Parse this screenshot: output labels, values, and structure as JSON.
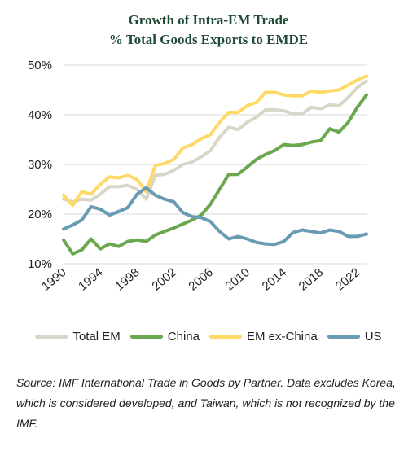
{
  "title_line1": "Growth of Intra-EM Trade",
  "title_line2": "% Total Goods Exports to EMDE",
  "source": "Source: IMF International Trade in Goods by Partner. Data excludes Korea, which is considered developed, and Taiwan, which is not recognized by the IMF.",
  "chart_data": {
    "type": "line",
    "title": "Growth of Intra-EM Trade",
    "subtitle": "% Total Goods Exports to EMDE",
    "ylim": [
      10,
      50
    ],
    "xlim": [
      1990,
      2023
    ],
    "y_ticks": [
      "10%",
      "20%",
      "30%",
      "40%",
      "50%"
    ],
    "x_ticks": [
      "1990",
      "1994",
      "1998",
      "2002",
      "2006",
      "2010",
      "2014",
      "2018",
      "2022"
    ],
    "grid": "horizontal",
    "legend_position": "bottom",
    "x": [
      1990,
      1991,
      1992,
      1993,
      1994,
      1995,
      1996,
      1997,
      1998,
      1999,
      2000,
      2001,
      2002,
      2003,
      2004,
      2005,
      2006,
      2007,
      2008,
      2009,
      2010,
      2011,
      2012,
      2013,
      2014,
      2015,
      2016,
      2017,
      2018,
      2019,
      2020,
      2021,
      2022,
      2023
    ],
    "series": [
      {
        "name": "Total EM",
        "color": "#d8d6c6",
        "values": [
          23.0,
          22.5,
          23.0,
          22.8,
          24.0,
          25.5,
          25.5,
          25.8,
          25.0,
          23.0,
          27.8,
          28.0,
          28.8,
          30.0,
          30.5,
          31.5,
          32.8,
          35.5,
          37.5,
          37.0,
          38.5,
          39.5,
          41.0,
          41.0,
          40.8,
          40.2,
          40.2,
          41.5,
          41.2,
          42.0,
          41.8,
          43.5,
          45.5,
          46.8
        ]
      },
      {
        "name": "China",
        "color": "#6aa84f",
        "values": [
          14.8,
          12.0,
          12.8,
          15.0,
          13.0,
          14.0,
          13.5,
          14.5,
          14.8,
          14.5,
          15.8,
          16.5,
          17.2,
          18.0,
          18.8,
          19.8,
          22.0,
          25.0,
          28.0,
          28.0,
          29.5,
          31.0,
          32.0,
          32.8,
          34.0,
          33.8,
          34.0,
          34.5,
          34.8,
          37.2,
          36.5,
          38.5,
          41.5,
          44.0
        ]
      },
      {
        "name": "EM ex-China",
        "color": "#ffd966",
        "values": [
          23.8,
          21.8,
          24.5,
          24.0,
          26.0,
          27.5,
          27.3,
          27.8,
          27.0,
          24.5,
          29.8,
          30.2,
          31.0,
          33.3,
          34.0,
          35.2,
          36.0,
          38.5,
          40.5,
          40.5,
          41.8,
          42.5,
          44.5,
          44.5,
          44.0,
          43.8,
          43.8,
          44.8,
          44.5,
          44.8,
          45.0,
          46.0,
          47.0,
          47.8
        ]
      },
      {
        "name": "US",
        "color": "#6a9bb5",
        "values": [
          17.0,
          17.8,
          18.8,
          21.5,
          21.0,
          19.8,
          20.5,
          21.3,
          24.0,
          25.3,
          23.8,
          23.0,
          22.5,
          20.3,
          19.5,
          19.3,
          18.5,
          16.5,
          15.0,
          15.5,
          15.0,
          14.3,
          14.0,
          13.9,
          14.5,
          16.3,
          16.8,
          16.5,
          16.2,
          16.8,
          16.5,
          15.5,
          15.5,
          16.0
        ]
      }
    ]
  }
}
